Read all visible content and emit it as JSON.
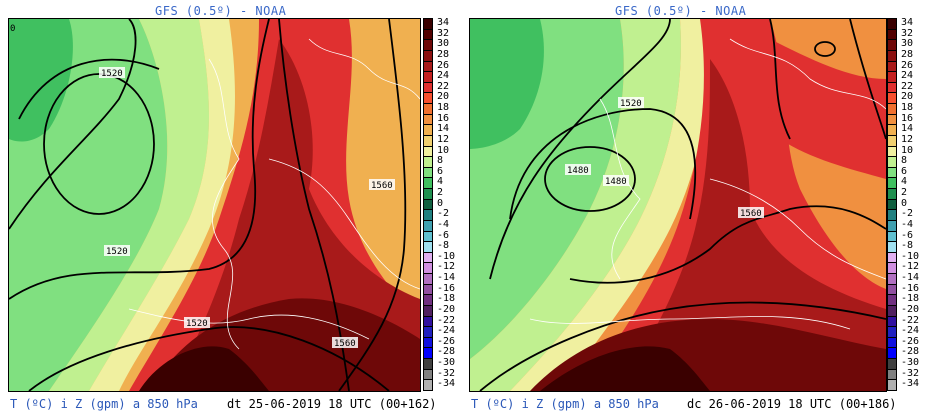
{
  "panels": [
    {
      "title": "GFS (0.5º) - NOAA",
      "footer_left": "T (ºC) i Z (gpm) a 850 hPa",
      "footer_right": "dt 25-06-2019 18 UTC (00+162)",
      "corner_label": "0",
      "contour_labels": [
        "1520",
        "1520",
        "1520",
        "1560",
        "1560"
      ]
    },
    {
      "title": "GFS (0.5º) - NOAA",
      "footer_left": "T (ºC) i Z (gpm) a 850 hPa",
      "footer_right": "dc 26-06-2019 18 UTC (00+186)",
      "contour_labels": [
        "1520",
        "1480",
        "1480",
        "1560"
      ]
    }
  ],
  "color_scale": {
    "labels": [
      "34",
      "32",
      "30",
      "28",
      "26",
      "24",
      "22",
      "20",
      "18",
      "16",
      "14",
      "12",
      "10",
      "8",
      "6",
      "4",
      "2",
      "0",
      "-2",
      "-4",
      "-6",
      "-8",
      "-10",
      "-12",
      "-14",
      "-16",
      "-18",
      "-20",
      "-22",
      "-24",
      "-26",
      "-28",
      "-30",
      "-32",
      "-34"
    ],
    "colors": [
      "#3a0000",
      "#520000",
      "#6e0808",
      "#8b1010",
      "#a81a1a",
      "#c42020",
      "#e03030",
      "#f85030",
      "#f07030",
      "#f09040",
      "#f0b050",
      "#f0d070",
      "#f0f0a0",
      "#c0f090",
      "#80e080",
      "#40c060",
      "#209050",
      "#106040",
      "#208080",
      "#40a0b0",
      "#60c0d0",
      "#a0e0f0",
      "#e0b0f0",
      "#d090e0",
      "#b070c0",
      "#9050a0",
      "#703080",
      "#502060",
      "#3010a0",
      "#2020c0",
      "#1010e0",
      "#0000ff",
      "#404040",
      "#808080",
      "#b0b0b0"
    ]
  }
}
